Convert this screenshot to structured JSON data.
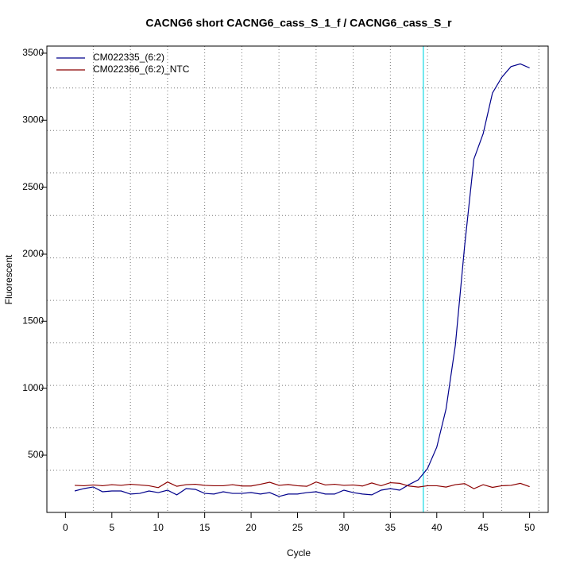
{
  "chart_data": {
    "type": "line",
    "title": "CACNG6 short CACNG6_cass_S_1_f / CACNG6_cass_S_r",
    "x_label": "Cycle",
    "y_label": "Fluorescent",
    "x": [
      1,
      2,
      3,
      4,
      5,
      6,
      7,
      8,
      9,
      10,
      11,
      12,
      13,
      14,
      15,
      16,
      17,
      18,
      19,
      20,
      21,
      22,
      23,
      24,
      25,
      26,
      27,
      28,
      29,
      30,
      31,
      32,
      33,
      34,
      35,
      36,
      37,
      38,
      39,
      40,
      41,
      42,
      43,
      44,
      45,
      46,
      47,
      48,
      49,
      50
    ],
    "series": [
      {
        "name": "CM022335_(6:2)",
        "color": "#00008b",
        "values": [
          233,
          251,
          263,
          227,
          233,
          233,
          210,
          215,
          233,
          221,
          239,
          204,
          251,
          245,
          215,
          210,
          227,
          215,
          215,
          221,
          210,
          221,
          192,
          210,
          210,
          221,
          227,
          210,
          210,
          239,
          221,
          210,
          204,
          239,
          251,
          239,
          280,
          316,
          400,
          560,
          845,
          1320,
          2060,
          2710,
          2900,
          3203,
          3320,
          3400,
          3420,
          3390
        ]
      },
      {
        "name": "CM022366_(6:2)_NTC",
        "color": "#8b0000",
        "values": [
          275,
          272,
          278,
          272,
          280,
          275,
          283,
          278,
          272,
          258,
          300,
          268,
          280,
          283,
          275,
          272,
          272,
          280,
          270,
          270,
          283,
          298,
          275,
          281,
          272,
          268,
          300,
          278,
          283,
          275,
          278,
          270,
          293,
          272,
          295,
          290,
          270,
          262,
          272,
          272,
          262,
          280,
          288,
          250,
          280,
          260,
          272,
          275,
          290,
          265
        ]
      }
    ],
    "xlim": [
      -2,
      52
    ],
    "ylim": [
      73,
      3553
    ],
    "xticks": [
      0,
      5,
      10,
      15,
      20,
      25,
      30,
      35,
      40,
      45,
      50
    ],
    "yticks": [
      500,
      1000,
      1500,
      2000,
      2500,
      3000,
      3500
    ],
    "xgrid": [
      3,
      7,
      11,
      15,
      19,
      23,
      27,
      31,
      35,
      39,
      43,
      47,
      51
    ],
    "ygrid": [
      387,
      704,
      1021,
      1338,
      1655,
      1972,
      2289,
      2606,
      2923,
      3240
    ],
    "threshold_x": 38.55,
    "threshold_color": "#40e0e8",
    "legend": "top-left"
  }
}
